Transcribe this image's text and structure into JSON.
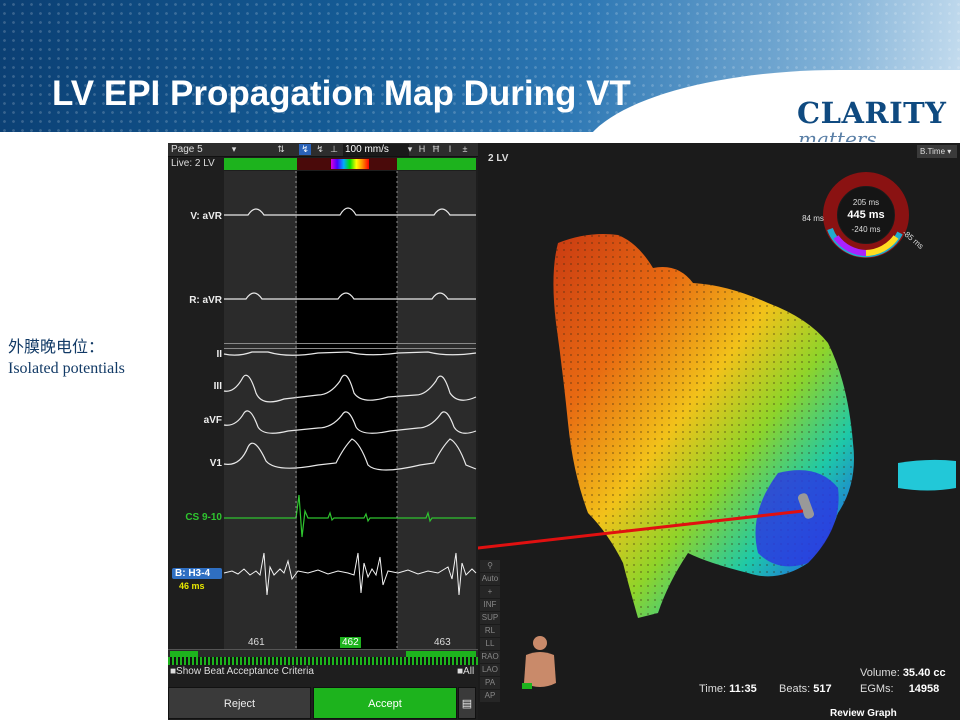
{
  "slide": {
    "title": "LV EPI Propagation Map During VT",
    "logo_main": "CLARITY",
    "logo_sub": "matters",
    "note_cn": "外膜晚电位：",
    "note_en": "Isolated potentials"
  },
  "egm": {
    "page_label": "Page 5",
    "live_label": "Live: 2 LV",
    "speed": "100 mm/s",
    "channels": [
      "V: aVR",
      "R: aVR",
      "II",
      "III",
      "aVF",
      "V1",
      "CS 9-10",
      "B: H3-4"
    ],
    "local_time": "46 ms",
    "beats": [
      "461",
      "462",
      "463"
    ],
    "criteria_label": "Show Beat Acceptance Criteria",
    "all_label": "All",
    "reject_label": "Reject",
    "accept_label": "Accept",
    "colors": {
      "accept": "#1db31d",
      "cs_trace": "#2fc42f",
      "selected_channel": "#2f6fc2"
    }
  },
  "map": {
    "title": "2 LV",
    "mode_select": "B.Time",
    "ring": {
      "top": "205 ms",
      "center": "445 ms",
      "bottom": "-240 ms",
      "left": "84 ms",
      "right": "-85 ms"
    },
    "tools": [
      "Auto",
      "+",
      "INF",
      "SUP",
      "RL",
      "LL",
      "RAO",
      "LAO",
      "PA",
      "AP"
    ],
    "time_label": "Time:",
    "time_value": "11:35",
    "beats_label": "Beats:",
    "beats_value": "517",
    "volume_label": "Volume:",
    "volume_value": "35.40 cc",
    "egms_label": "EGMs:",
    "egms_value": "14958",
    "review_label": "Review Graph",
    "arrow_color": "#e01010"
  }
}
